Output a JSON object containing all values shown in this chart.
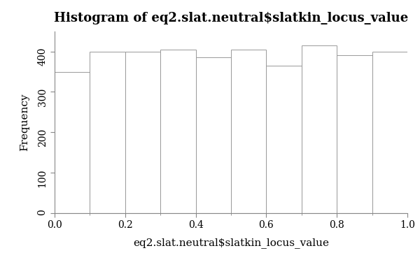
{
  "title": "Histogram of eq2.slat.neutral$slatkin_locus_value",
  "xlabel": "eq2.slat.neutral$slatkin_locus_value",
  "ylabel": "Frequency",
  "bar_heights": [
    350,
    400,
    400,
    405,
    385,
    405,
    365,
    415,
    390,
    400
  ],
  "bar_edges": [
    0.0,
    0.1,
    0.2,
    0.3,
    0.4,
    0.5,
    0.6,
    0.7,
    0.8,
    0.9,
    1.0
  ],
  "bar_color": "#ffffff",
  "bar_edge_color": "#999999",
  "xlim": [
    0.0,
    1.0
  ],
  "ylim": [
    0,
    450
  ],
  "yticks": [
    0,
    100,
    200,
    300,
    400
  ],
  "xticks_major": [
    0.0,
    0.2,
    0.4,
    0.6,
    0.8,
    1.0
  ],
  "xticks_minor": [
    0.1,
    0.3,
    0.5,
    0.7,
    0.9
  ],
  "background_color": "#ffffff",
  "title_fontsize": 13,
  "axis_label_fontsize": 11,
  "tick_fontsize": 10
}
